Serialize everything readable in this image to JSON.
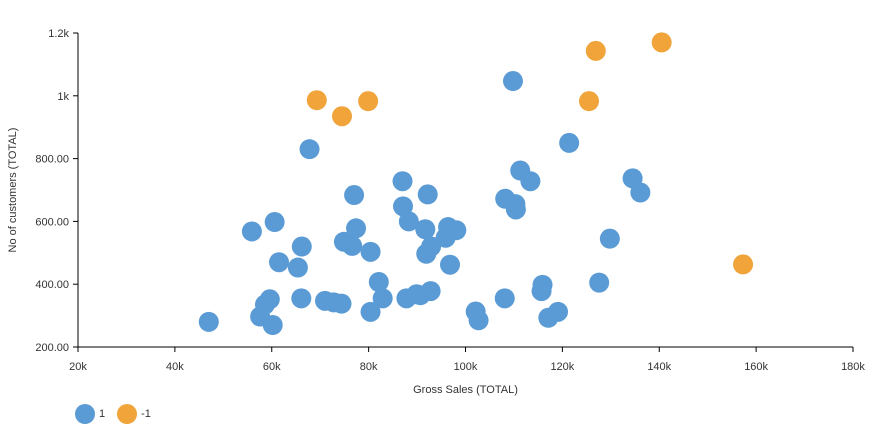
{
  "chart_data": {
    "type": "scatter",
    "xlabel": "Gross Sales (TOTAL)",
    "ylabel": "No of customers (TOTAL)",
    "xlim": [
      20000,
      180000
    ],
    "ylim": [
      200,
      1200
    ],
    "x_ticks": [
      20000,
      40000,
      60000,
      80000,
      100000,
      120000,
      140000,
      160000,
      180000
    ],
    "x_tick_labels": [
      "20k",
      "40k",
      "60k",
      "80k",
      "100k",
      "120k",
      "140k",
      "160k",
      "180k"
    ],
    "y_ticks": [
      200,
      400,
      600,
      800,
      1000,
      1200
    ],
    "y_tick_labels": [
      "200.00",
      "400.00",
      "600.00",
      "800.00",
      "1k",
      "1.2k"
    ],
    "grid": false,
    "legend_position": "bottom-left",
    "series": [
      {
        "name": "1",
        "color": "#5b9bd5",
        "points": [
          [
            47000,
            280
          ],
          [
            55900,
            568
          ],
          [
            57600,
            297
          ],
          [
            58600,
            335
          ],
          [
            59600,
            352
          ],
          [
            60200,
            270
          ],
          [
            60600,
            598
          ],
          [
            61500,
            470
          ],
          [
            65400,
            453
          ],
          [
            66200,
            520
          ],
          [
            66100,
            355
          ],
          [
            67800,
            830
          ],
          [
            71000,
            347
          ],
          [
            72800,
            342
          ],
          [
            74400,
            338
          ],
          [
            74900,
            535
          ],
          [
            76600,
            522
          ],
          [
            77000,
            684
          ],
          [
            77400,
            578
          ],
          [
            80400,
            503
          ],
          [
            80400,
            312
          ],
          [
            82100,
            407
          ],
          [
            82900,
            355
          ],
          [
            87000,
            728
          ],
          [
            87100,
            648
          ],
          [
            87800,
            355
          ],
          [
            88300,
            600
          ],
          [
            89900,
            368
          ],
          [
            90700,
            365
          ],
          [
            91700,
            575
          ],
          [
            91900,
            497
          ],
          [
            92200,
            686
          ],
          [
            92800,
            378
          ],
          [
            92900,
            520
          ],
          [
            95900,
            548
          ],
          [
            96400,
            582
          ],
          [
            96800,
            462
          ],
          [
            98100,
            572
          ],
          [
            102100,
            313
          ],
          [
            102700,
            285
          ],
          [
            108100,
            355
          ],
          [
            108200,
            672
          ],
          [
            109800,
            1047
          ],
          [
            110300,
            655
          ],
          [
            110400,
            638
          ],
          [
            111300,
            762
          ],
          [
            113400,
            728
          ],
          [
            115700,
            378
          ],
          [
            115900,
            398
          ],
          [
            117100,
            293
          ],
          [
            119100,
            312
          ],
          [
            121400,
            850
          ],
          [
            127600,
            405
          ],
          [
            129800,
            545
          ],
          [
            134500,
            737
          ],
          [
            136100,
            692
          ]
        ]
      },
      {
        "name": "-1",
        "color": "#f0a43a",
        "points": [
          [
            69300,
            986
          ],
          [
            74500,
            935
          ],
          [
            79900,
            983
          ],
          [
            125500,
            983
          ],
          [
            126900,
            1143
          ],
          [
            140500,
            1170
          ],
          [
            157300,
            463
          ]
        ]
      }
    ]
  }
}
